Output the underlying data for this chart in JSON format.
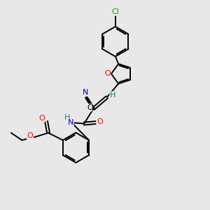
{
  "background_color": "#e8e8e8",
  "bond_color": "#000000",
  "atom_colors": {
    "O": "#ff0000",
    "N": "#0000cd",
    "Cl": "#00aa00",
    "C": "#000000",
    "H": "#008080"
  },
  "figsize": [
    3.0,
    3.0
  ],
  "dpi": 100
}
